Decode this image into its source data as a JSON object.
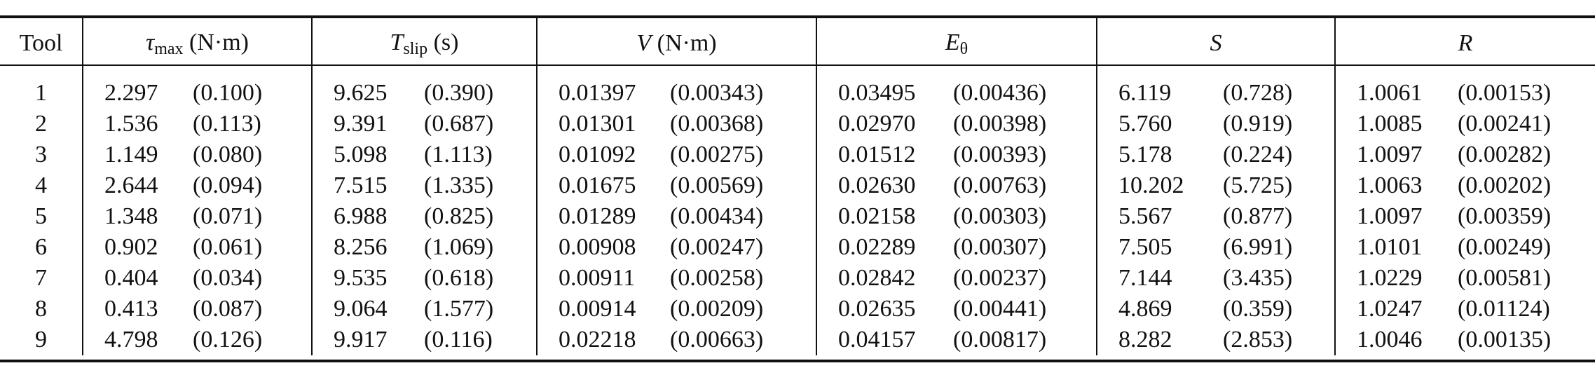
{
  "table": {
    "headers": [
      {
        "symbol": "Tool",
        "sub": "",
        "unit": "",
        "italic": false
      },
      {
        "symbol": "τ",
        "sub": "max",
        "unit": "(N·m)",
        "italic": true
      },
      {
        "symbol": "T",
        "sub": "slip",
        "unit": "(s)",
        "italic": true
      },
      {
        "symbol": "V",
        "sub": "",
        "unit": "(N·m)",
        "italic": true
      },
      {
        "symbol": "E",
        "sub": "θ",
        "unit": "",
        "italic": true
      },
      {
        "symbol": "S",
        "sub": "",
        "unit": "",
        "italic": true
      },
      {
        "symbol": "R",
        "sub": "",
        "unit": "",
        "italic": true
      }
    ],
    "rows": [
      {
        "tool": "1",
        "cells": [
          [
            "2.297",
            "(0.100)"
          ],
          [
            "9.625",
            "(0.390)"
          ],
          [
            "0.01397",
            "(0.00343)"
          ],
          [
            "0.03495",
            "(0.00436)"
          ],
          [
            "6.119",
            "(0.728)"
          ],
          [
            "1.0061",
            "(0.00153)"
          ]
        ]
      },
      {
        "tool": "2",
        "cells": [
          [
            "1.536",
            "(0.113)"
          ],
          [
            "9.391",
            "(0.687)"
          ],
          [
            "0.01301",
            "(0.00368)"
          ],
          [
            "0.02970",
            "(0.00398)"
          ],
          [
            "5.760",
            "(0.919)"
          ],
          [
            "1.0085",
            "(0.00241)"
          ]
        ]
      },
      {
        "tool": "3",
        "cells": [
          [
            "1.149",
            "(0.080)"
          ],
          [
            "5.098",
            "(1.113)"
          ],
          [
            "0.01092",
            "(0.00275)"
          ],
          [
            "0.01512",
            "(0.00393)"
          ],
          [
            "5.178",
            "(0.224)"
          ],
          [
            "1.0097",
            "(0.00282)"
          ]
        ]
      },
      {
        "tool": "4",
        "cells": [
          [
            "2.644",
            "(0.094)"
          ],
          [
            "7.515",
            "(1.335)"
          ],
          [
            "0.01675",
            "(0.00569)"
          ],
          [
            "0.02630",
            "(0.00763)"
          ],
          [
            "10.202",
            "(5.725)"
          ],
          [
            "1.0063",
            "(0.00202)"
          ]
        ]
      },
      {
        "tool": "5",
        "cells": [
          [
            "1.348",
            "(0.071)"
          ],
          [
            "6.988",
            "(0.825)"
          ],
          [
            "0.01289",
            "(0.00434)"
          ],
          [
            "0.02158",
            "(0.00303)"
          ],
          [
            "5.567",
            "(0.877)"
          ],
          [
            "1.0097",
            "(0.00359)"
          ]
        ]
      },
      {
        "tool": "6",
        "cells": [
          [
            "0.902",
            "(0.061)"
          ],
          [
            "8.256",
            "(1.069)"
          ],
          [
            "0.00908",
            "(0.00247)"
          ],
          [
            "0.02289",
            "(0.00307)"
          ],
          [
            "7.505",
            "(6.991)"
          ],
          [
            "1.0101",
            "(0.00249)"
          ]
        ]
      },
      {
        "tool": "7",
        "cells": [
          [
            "0.404",
            "(0.034)"
          ],
          [
            "9.535",
            "(0.618)"
          ],
          [
            "0.00911",
            "(0.00258)"
          ],
          [
            "0.02842",
            "(0.00237)"
          ],
          [
            "7.144",
            "(3.435)"
          ],
          [
            "1.0229",
            "(0.00581)"
          ]
        ]
      },
      {
        "tool": "8",
        "cells": [
          [
            "0.413",
            "(0.087)"
          ],
          [
            "9.064",
            "(1.577)"
          ],
          [
            "0.00914",
            "(0.00209)"
          ],
          [
            "0.02635",
            "(0.00441)"
          ],
          [
            "4.869",
            "(0.359)"
          ],
          [
            "1.0247",
            "(0.01124)"
          ]
        ]
      },
      {
        "tool": "9",
        "cells": [
          [
            "4.798",
            "(0.126)"
          ],
          [
            "9.917",
            "(0.116)"
          ],
          [
            "0.02218",
            "(0.00663)"
          ],
          [
            "0.04157",
            "(0.00817)"
          ],
          [
            "8.282",
            "(2.853)"
          ],
          [
            "1.0046",
            "(0.00135)"
          ]
        ]
      }
    ]
  }
}
